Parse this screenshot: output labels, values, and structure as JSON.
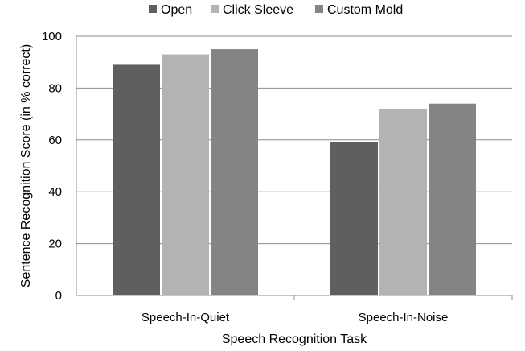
{
  "chart_data": {
    "type": "bar",
    "categories": [
      "Speech-In-Quiet",
      "Speech-In-Noise"
    ],
    "series": [
      {
        "name": "Open",
        "values": [
          89,
          59
        ],
        "color": "#5f5f5f"
      },
      {
        "name": "Click Sleeve",
        "values": [
          93,
          72
        ],
        "color": "#b3b3b3"
      },
      {
        "name": "Custom Mold",
        "values": [
          95,
          74
        ],
        "color": "#848484"
      }
    ],
    "xlabel": "Speech Recognition Task",
    "ylabel": "Sentence Recognition Score (in % correct)",
    "ylim": [
      0,
      100
    ],
    "yticks": [
      0,
      20,
      40,
      60,
      80,
      100
    ],
    "grid": true,
    "legend": "top"
  }
}
